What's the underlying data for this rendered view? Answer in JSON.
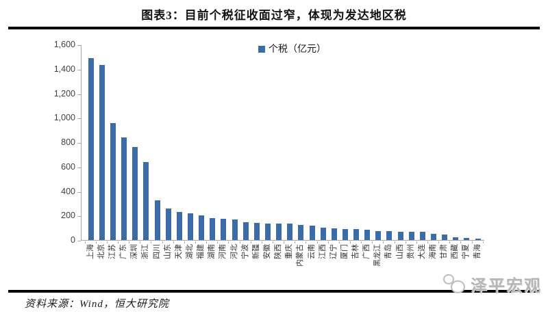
{
  "header": {
    "title": "图表3：目前个税征收面过窄，体现为发达地区税"
  },
  "legend": {
    "label": "个税（亿元）"
  },
  "footer": {
    "source": "资料来源：Wind，恒大研究院",
    "watermark": "泽平宏观"
  },
  "colors": {
    "bar": "#3c6ca8",
    "axis": "#a6a6a6",
    "rule": "#000000",
    "watermark_text": "#b5b5b5"
  },
  "chart_data": {
    "type": "bar",
    "title": "图表3：目前个税征收面过窄，体现为发达地区税",
    "legend_entries": [
      "个税（亿元）"
    ],
    "legend_position": "top-center",
    "unit": "亿元",
    "xlabel": "",
    "ylabel": "",
    "ylim": [
      0,
      1600
    ],
    "ytick_interval": 200,
    "ytick_labels": [
      "0",
      "200",
      "400",
      "600",
      "800",
      "1,000",
      "1,200",
      "1,400",
      "1,600"
    ],
    "grid": false,
    "categories": [
      "上海",
      "北京",
      "江苏",
      "广东",
      "深圳",
      "浙江",
      "四川",
      "山东",
      "天津",
      "湖北",
      "福建",
      "湖南",
      "河南",
      "河北",
      "宁波",
      "新疆",
      "安徽",
      "陕西",
      "重庆",
      "内蒙古",
      "云南",
      "江西",
      "辽宁",
      "厦门",
      "吉林",
      "广西",
      "黑龙江",
      "青岛",
      "山西",
      "贵州",
      "大连",
      "海南",
      "甘肃",
      "西藏",
      "宁夏",
      "青海"
    ],
    "values": [
      1490,
      1430,
      955,
      840,
      760,
      640,
      322,
      260,
      230,
      216,
      200,
      180,
      172,
      168,
      145,
      141,
      136,
      134,
      132,
      122,
      118,
      102,
      96,
      92,
      88,
      86,
      74,
      72,
      70,
      69,
      68,
      50,
      45,
      21,
      15,
      10
    ]
  }
}
